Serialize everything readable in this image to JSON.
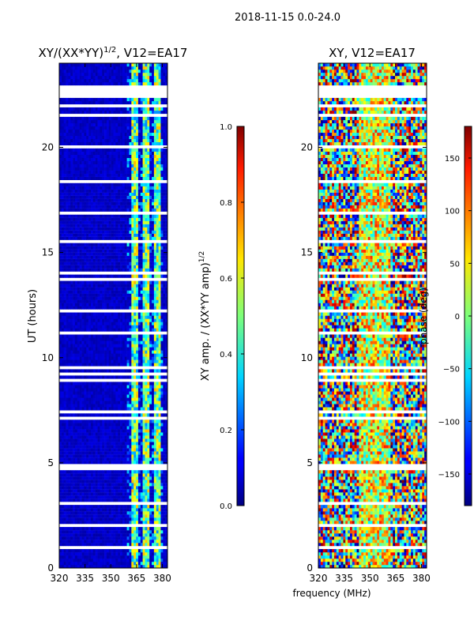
{
  "figure_title": "2018-11-15 0.0-24.0",
  "chart_data": [
    {
      "type": "heatmap",
      "title": "XY/(XX*YY)^{1/2}, V12=EA17",
      "title_main": "XY/(XX*YY)",
      "title_exp": "1/2",
      "title_tail": ", V12=EA17",
      "xlabel": "",
      "ylabel": "UT (hours)",
      "xlim": [
        320,
        383
      ],
      "ylim": [
        0,
        24
      ],
      "xticks": [
        320,
        335,
        350,
        365,
        380
      ],
      "yticks": [
        0,
        5,
        10,
        15,
        20
      ],
      "xtick_labels": [
        "320",
        "335",
        "350",
        "365",
        "380"
      ],
      "ytick_labels": [
        "0",
        "5",
        "10",
        "15",
        "20"
      ],
      "description_values": "normalized XY amplitude, mostly ~0.05 with bright bands (0.3-0.7) near 360-377 MHz",
      "colorbar": {
        "label_main": "XY amp. / (XX*YY amp)",
        "label_exp": "1/2",
        "range": [
          0.0,
          1.0
        ],
        "ticks": [
          0.0,
          0.2,
          0.4,
          0.6,
          0.8,
          1.0
        ],
        "tick_labels": [
          "0.0",
          "0.2",
          "0.4",
          "0.6",
          "0.8",
          "1.0"
        ]
      }
    },
    {
      "type": "heatmap",
      "title": "XY, V12=EA17",
      "xlabel": "frequency (MHz)",
      "ylabel": "",
      "xlim": [
        320,
        383
      ],
      "ylim": [
        0,
        24
      ],
      "xticks": [
        320,
        335,
        350,
        365,
        380
      ],
      "yticks": [
        0,
        5,
        10,
        15,
        20
      ],
      "xtick_labels": [
        "320",
        "335",
        "350",
        "365",
        "380"
      ],
      "ytick_labels": [
        "0",
        "5",
        "10",
        "15",
        "20"
      ],
      "description_values": "XY phase in degrees, noisy across full range with green/yellow (near 0-50 deg) dominant near 350-360 MHz",
      "colorbar": {
        "label": "phase (deg)",
        "range": [
          -180,
          180
        ],
        "ticks": [
          -150,
          -100,
          -50,
          0,
          50,
          100,
          150
        ],
        "tick_labels": [
          "−150",
          "−100",
          "−50",
          "0",
          "50",
          "100",
          "150"
        ]
      }
    }
  ]
}
